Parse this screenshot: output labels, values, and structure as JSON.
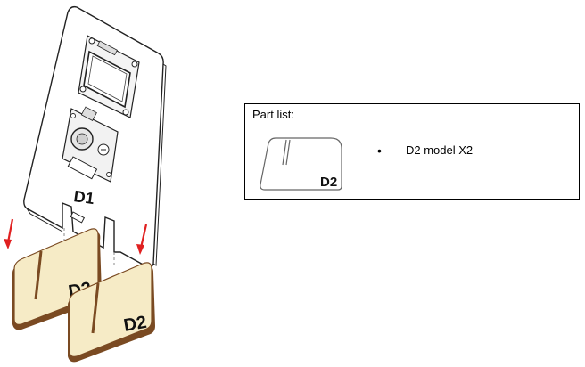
{
  "figure": {
    "board_label": "D1",
    "foot_labels": [
      "D2",
      "D2"
    ],
    "colors": {
      "arrow": "#e02020",
      "wood_face": "#f6ebc6",
      "wood_edge": "#7a4a22",
      "outline": "#222222",
      "dashed": "#888888"
    }
  },
  "part_list": {
    "title": "Part list:",
    "thumbnail_label": "D2",
    "bullet": "•",
    "entry": "D2 model X2"
  }
}
